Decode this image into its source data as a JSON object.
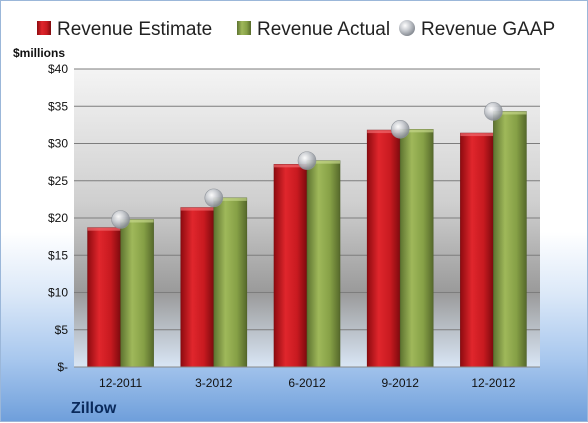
{
  "chart_data": {
    "type": "bar",
    "title": "",
    "company": "Zillow",
    "unit_label": "$millions",
    "categories": [
      "12-2011",
      "3-2012",
      "6-2012",
      "9-2012",
      "12-2012"
    ],
    "series": [
      {
        "name": "Revenue Estimate",
        "kind": "bar",
        "color": "#d0141c",
        "values": [
          18.7,
          21.4,
          27.2,
          31.8,
          31.4
        ]
      },
      {
        "name": "Revenue Actual",
        "kind": "bar",
        "color": "#8aa34a",
        "values": [
          19.8,
          22.7,
          27.7,
          31.9,
          34.3
        ]
      },
      {
        "name": "Revenue GAAP",
        "kind": "marker",
        "color": "#b8bcc2",
        "values": [
          19.8,
          22.7,
          27.7,
          31.9,
          34.3
        ]
      }
    ],
    "ylim": [
      0,
      40
    ],
    "y_ticks": [
      0,
      5,
      10,
      15,
      20,
      25,
      30,
      35,
      40
    ],
    "y_tick_labels": [
      "$-",
      "$5",
      "$10",
      "$15",
      "$20",
      "$25",
      "$30",
      "$35",
      "$40"
    ],
    "grid": true,
    "legend_position": "top"
  }
}
